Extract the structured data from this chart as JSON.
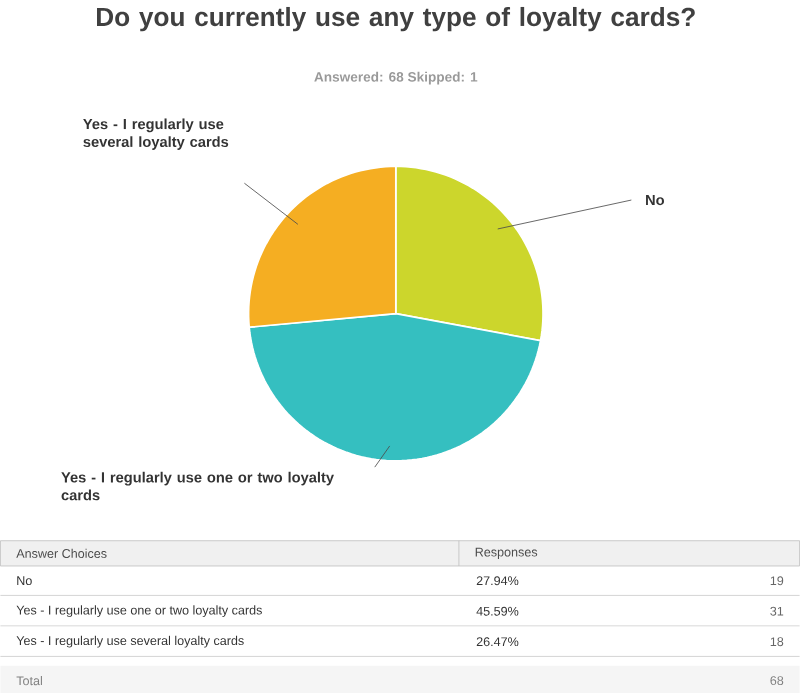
{
  "chart_data": {
    "type": "pie",
    "title": "Do you currently use any type of loyalty cards?",
    "subtitle": "Answered: 68  Skipped: 1",
    "categories": [
      "No",
      "Yes - I regularly use one or two loyalty cards",
      "Yes - I regularly use several loyalty cards"
    ],
    "values": [
      27.94,
      45.59,
      26.47
    ],
    "colors": [
      "#ccd62c",
      "#35bfc0",
      "#f5ae22"
    ],
    "annotations": [
      "Answer Choices",
      "Responses",
      "19",
      "31",
      "18",
      "Total",
      "68",
      "27.94%",
      "45.59%",
      "26.47%"
    ]
  }
}
